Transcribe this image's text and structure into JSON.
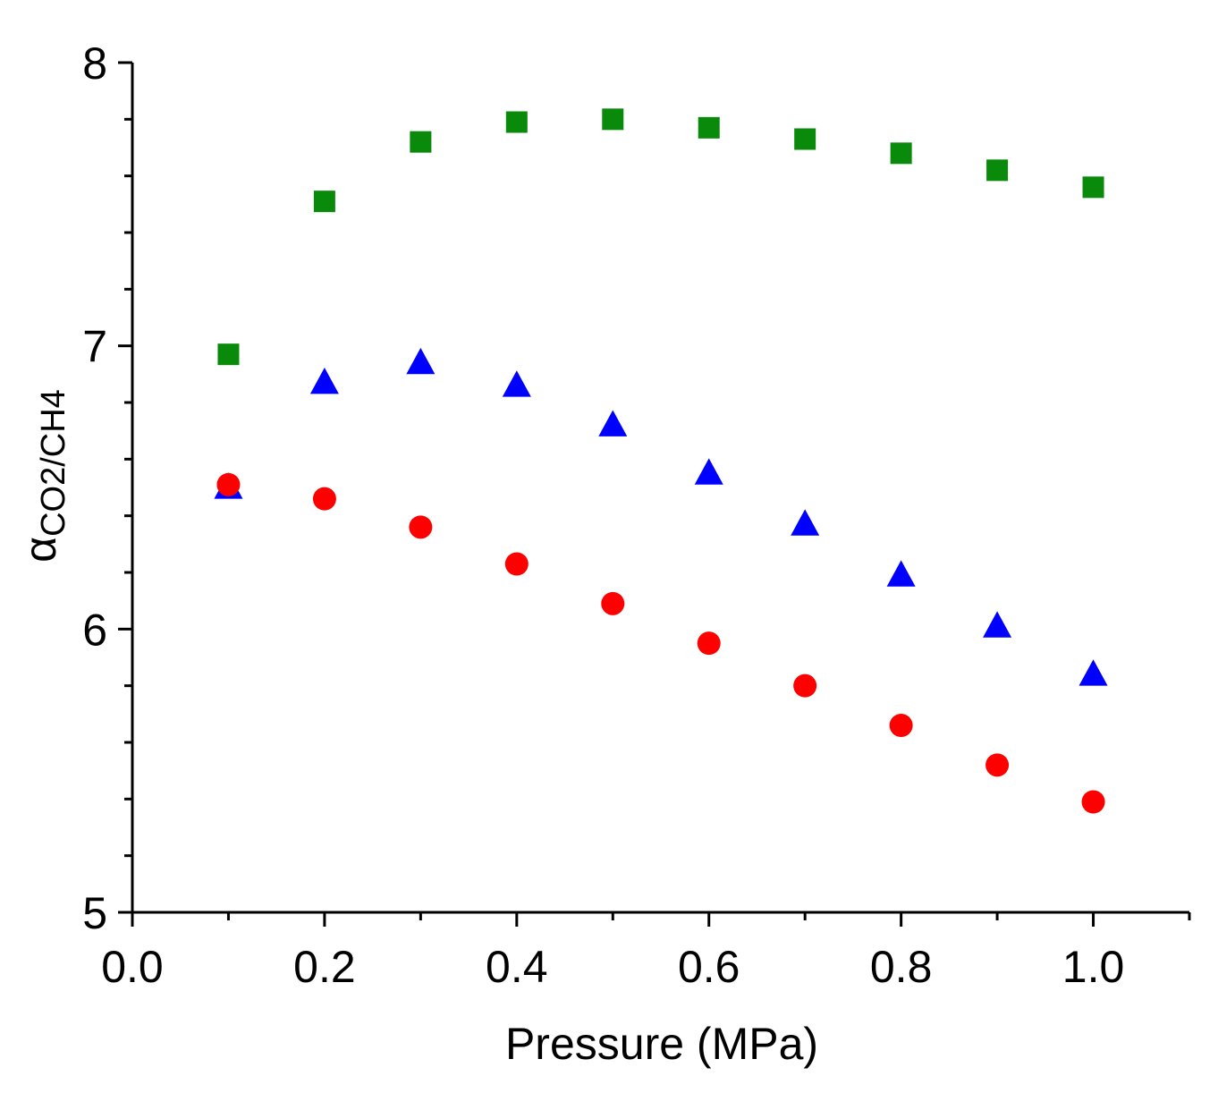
{
  "chart_data": {
    "type": "scatter",
    "title": "",
    "xlabel": "Pressure (MPa)",
    "ylabel": {
      "base": "α",
      "subscript": "CO2/CH4"
    },
    "xlim": [
      0.0,
      1.1
    ],
    "ylim": [
      5,
      8
    ],
    "x_ticks": [
      "0.0",
      "0.2",
      "0.4",
      "0.6",
      "0.8",
      "1.0"
    ],
    "y_ticks": [
      "5",
      "6",
      "7",
      "8"
    ],
    "grid": false,
    "legend": null,
    "series": [
      {
        "name": "green squares",
        "marker": "square",
        "color": "#0a8a0a",
        "x": [
          0.1,
          0.2,
          0.3,
          0.4,
          0.5,
          0.6,
          0.7,
          0.8,
          0.9,
          1.0
        ],
        "y": [
          6.97,
          7.51,
          7.72,
          7.79,
          7.8,
          7.77,
          7.73,
          7.68,
          7.62,
          7.56
        ]
      },
      {
        "name": "blue triangles",
        "marker": "triangle",
        "color": "#0000ff",
        "x": [
          0.1,
          0.2,
          0.3,
          0.4,
          0.5,
          0.6,
          0.7,
          0.8,
          0.9,
          1.0
        ],
        "y": [
          6.5,
          6.87,
          6.94,
          6.86,
          6.72,
          6.55,
          6.37,
          6.19,
          6.01,
          5.84
        ]
      },
      {
        "name": "red circles",
        "marker": "circle",
        "color": "#ff0000",
        "x": [
          0.1,
          0.2,
          0.3,
          0.4,
          0.5,
          0.6,
          0.7,
          0.8,
          0.9,
          1.0
        ],
        "y": [
          6.51,
          6.46,
          6.36,
          6.23,
          6.09,
          5.95,
          5.8,
          5.66,
          5.52,
          5.39
        ]
      }
    ]
  }
}
